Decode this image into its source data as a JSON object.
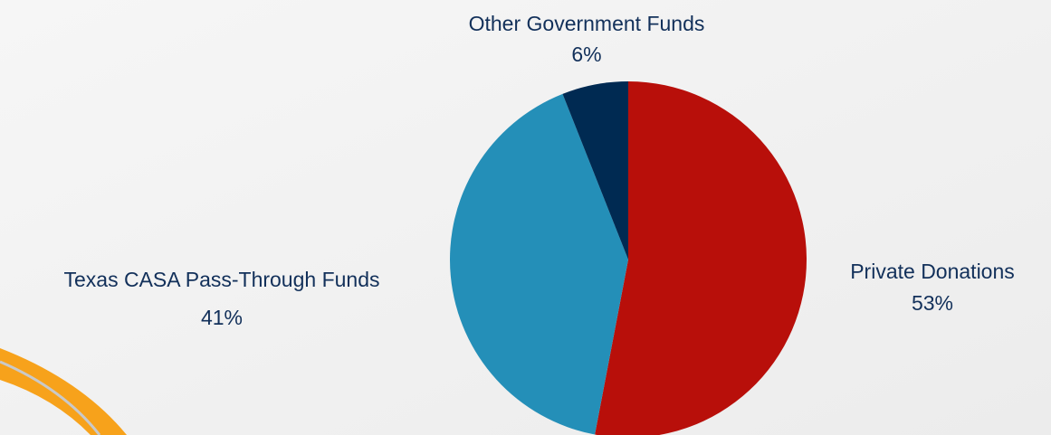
{
  "chart_data": {
    "type": "pie",
    "categories": [
      "Private Donations",
      "Texas CASA Pass-Through Funds",
      "Other Government Funds"
    ],
    "values": [
      53,
      41,
      6
    ],
    "value_labels": [
      "53%",
      "41%",
      "6%"
    ],
    "colors": [
      "#b80f0a",
      "#248fb8",
      "#002a52"
    ]
  }
}
